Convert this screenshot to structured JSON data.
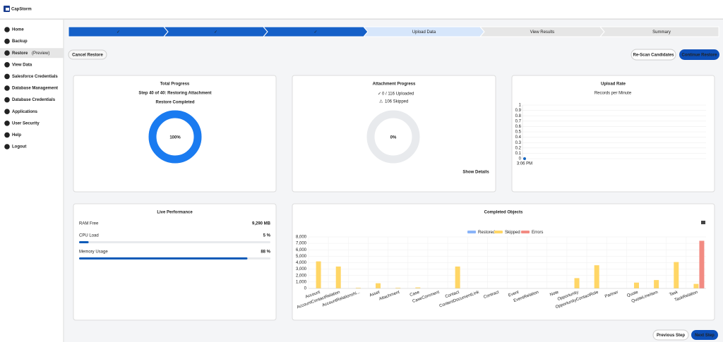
{
  "logo": "CapStorm",
  "sidebar": {
    "items": [
      {
        "label": "Home"
      },
      {
        "label": "Backup"
      },
      {
        "label": "Restore",
        "suffix": "(Preview)"
      },
      {
        "label": "View Data"
      },
      {
        "label": "Salesforce Credentials"
      },
      {
        "label": "Database Management"
      },
      {
        "label": "Database Credentials"
      },
      {
        "label": "Applications"
      },
      {
        "label": "User Security"
      },
      {
        "label": "Help"
      },
      {
        "label": "Logout"
      }
    ]
  },
  "stepper": {
    "steps": [
      "✓",
      "✓",
      "✓",
      "Upload Data",
      "View Results",
      "Summary"
    ]
  },
  "buttons": {
    "cancel": "Cancel Restore",
    "rescan": "Re-Scan Candidates",
    "continue": "Continue Restore",
    "previous": "Previous Step",
    "next": "Next Step"
  },
  "total_progress": {
    "title": "Total Progress",
    "step": "Step 40 of 40: Restoring Attachment",
    "status": "Restore Completed",
    "percent": 100,
    "percent_label": "100%"
  },
  "attachment_progress": {
    "title": "Attachment Progress",
    "uploaded": "0 / 116 Uploaded",
    "skipped": "106 Skipped",
    "percent": 0,
    "percent_label": "0%",
    "link": "Show Details"
  },
  "upload_rate": {
    "type": "line",
    "title": "Upload Rate",
    "subtitle": "Records per Minute",
    "x": [
      "3:06 PM"
    ],
    "values": [
      0
    ],
    "color": "#1565c0",
    "ylim": [
      0,
      1
    ],
    "yticks": [
      0,
      0.1,
      0.2,
      0.3,
      0.4,
      0.5,
      0.6,
      0.7,
      0.8,
      0.9,
      1
    ],
    "grid": true
  },
  "live_performance": {
    "title": "Live Performance",
    "metrics": [
      {
        "label": "RAM Free",
        "value_label": "9,290 MB"
      },
      {
        "label": "CPU Load",
        "value": 5,
        "value_label": "5 %"
      },
      {
        "label": "Memory Usage",
        "value": 88,
        "value_label": "88 %"
      }
    ]
  },
  "completed_objects": {
    "type": "bar",
    "title": "Completed Objects",
    "categories": [
      "Account",
      "AccountContactRelation",
      "AccountRelationshi...",
      "Asset",
      "Attachment",
      "Case",
      "CaseComment",
      "Contact",
      "ContentDocumentLink",
      "Contract",
      "Event",
      "EventRelation",
      "Note",
      "Opportunity",
      "OpportunityContactRole",
      "Partner",
      "Quote",
      "QuoteLineItem",
      "Task",
      "TaskRelation"
    ],
    "series": [
      {
        "name": "Restored",
        "color": "#8ab4f8",
        "values": [
          0,
          0,
          0,
          0,
          0,
          0,
          0,
          0,
          0,
          0,
          0,
          0,
          0,
          0,
          0,
          0,
          0,
          0,
          0,
          0
        ]
      },
      {
        "name": "Skipped",
        "color": "#ffd666",
        "values": [
          4200,
          3400,
          100,
          800,
          100,
          150,
          0,
          3400,
          0,
          0,
          0,
          0,
          0,
          1600,
          3600,
          0,
          900,
          1300,
          4100,
          700
        ]
      },
      {
        "name": "Errors",
        "color": "#f28b82",
        "values": [
          0,
          0,
          0,
          0,
          0,
          0,
          0,
          0,
          0,
          0,
          0,
          0,
          0,
          0,
          0,
          0,
          0,
          0,
          0,
          7400
        ]
      }
    ],
    "ylim": [
      0,
      8000
    ],
    "yticks": [
      0,
      {
        "value": 1000,
        "label": "1,000"
      },
      {
        "value": 2000,
        "label": "2,000"
      },
      {
        "value": 3000,
        "label": "3,000"
      },
      {
        "value": 4000,
        "label": "4,000"
      },
      {
        "value": 5000,
        "label": "5,000"
      },
      {
        "value": 6000,
        "label": "6,000"
      },
      {
        "value": 7000,
        "label": "7,000"
      },
      {
        "value": 8000,
        "label": "8,000"
      }
    ],
    "grid": true
  }
}
